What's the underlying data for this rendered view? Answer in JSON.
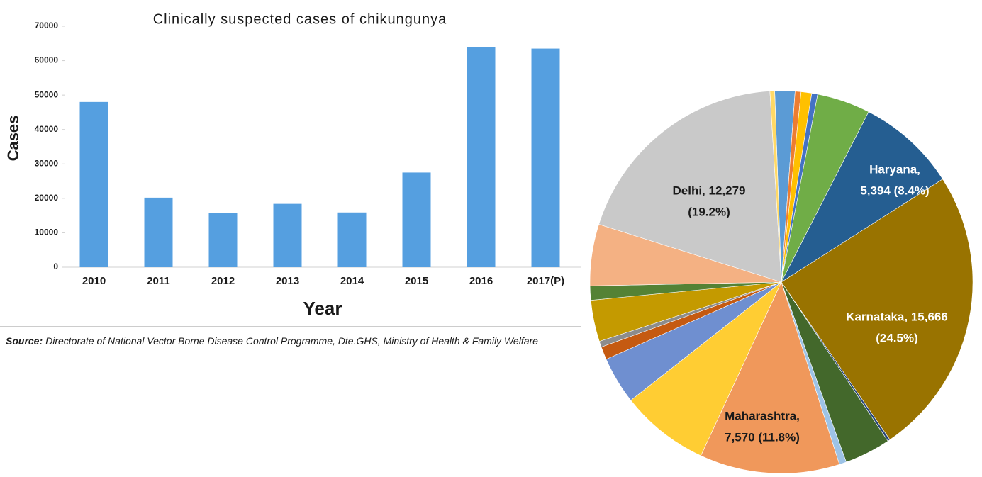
{
  "chart_data": [
    {
      "type": "bar",
      "title": "Clinically suspected cases of chikungunya",
      "xlabel": "Year",
      "ylabel": "Cases",
      "categories": [
        "2010",
        "2011",
        "2012",
        "2013",
        "2014",
        "2015",
        "2016",
        "2017(P)"
      ],
      "values": [
        48000,
        20200,
        15800,
        18400,
        15900,
        27500,
        64000,
        63500
      ],
      "color": "#559fe0",
      "ylim": [
        0,
        70000
      ],
      "yticks": [
        0,
        10000,
        20000,
        30000,
        40000,
        50000,
        60000,
        70000
      ],
      "source_label": "Source:",
      "source": "Directorate of National Vector Borne Disease Control Programme, Dte.GHS, Ministry of Health & Family Welfare"
    },
    {
      "type": "pie",
      "values": [
        1090,
        320,
        575,
        320,
        2880,
        5394,
        15666,
        130,
        2490,
        385,
        7570,
        4800,
        2560,
        700,
        320,
        2240,
        770,
        3330,
        12279,
        255
      ],
      "colors": [
        "#5b9bd5",
        "#ed7d31",
        "#ffc000",
        "#4472c4",
        "#70ad47",
        "#255e91",
        "#997300",
        "#264478",
        "#43682b",
        "#9dc3e6",
        "#f0985b",
        "#ffcd33",
        "#6f8fd0",
        "#c55a11",
        "#8c8c8c",
        "#c49a00",
        "#548235",
        "#f4b183",
        "#c9c9c9",
        "#ffd966"
      ],
      "value_labels": [
        null,
        null,
        null,
        null,
        null,
        [
          "Haryana,",
          "5,394 (8.4%)"
        ],
        [
          "Karnataka, 15,666",
          "(24.5%)"
        ],
        null,
        null,
        null,
        [
          "Maharashtra,",
          "7,570 (11.8%)"
        ],
        null,
        null,
        null,
        null,
        null,
        null,
        null,
        [
          "Delhi, 12,279",
          "(19.2%)"
        ],
        null
      ]
    }
  ]
}
